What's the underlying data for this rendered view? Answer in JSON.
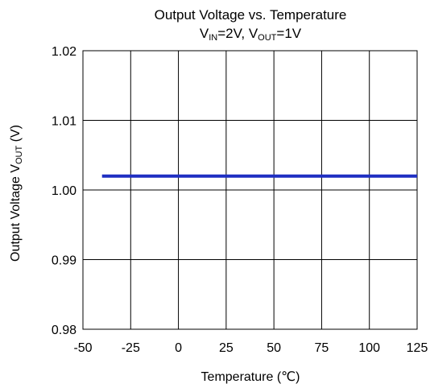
{
  "chart_data": {
    "type": "line",
    "title": "Output Voltage vs. Temperature",
    "subtitle": {
      "vin_symbol": "V",
      "vin_subscript": "IN",
      "vin_value": "=2V, ",
      "vout_symbol": "V",
      "vout_subscript": "OUT",
      "vout_value": "=1V"
    },
    "xlabel": "Temperature (℃)",
    "ylabel": {
      "main": "Output Voltage  V",
      "subscript": "OUT",
      "unit": " (V)"
    },
    "xlim": [
      -50,
      125
    ],
    "ylim": [
      0.98,
      1.02
    ],
    "x_ticks": [
      "-50",
      "-25",
      "0",
      "25",
      "50",
      "75",
      "100",
      "125"
    ],
    "y_ticks": [
      "0.98",
      "0.99",
      "1.00",
      "1.01",
      "1.02"
    ],
    "grid": true,
    "series": [
      {
        "color": "#1f2fc2",
        "x": [
          -40,
          125
        ],
        "y": [
          1.002,
          1.002
        ]
      }
    ]
  }
}
